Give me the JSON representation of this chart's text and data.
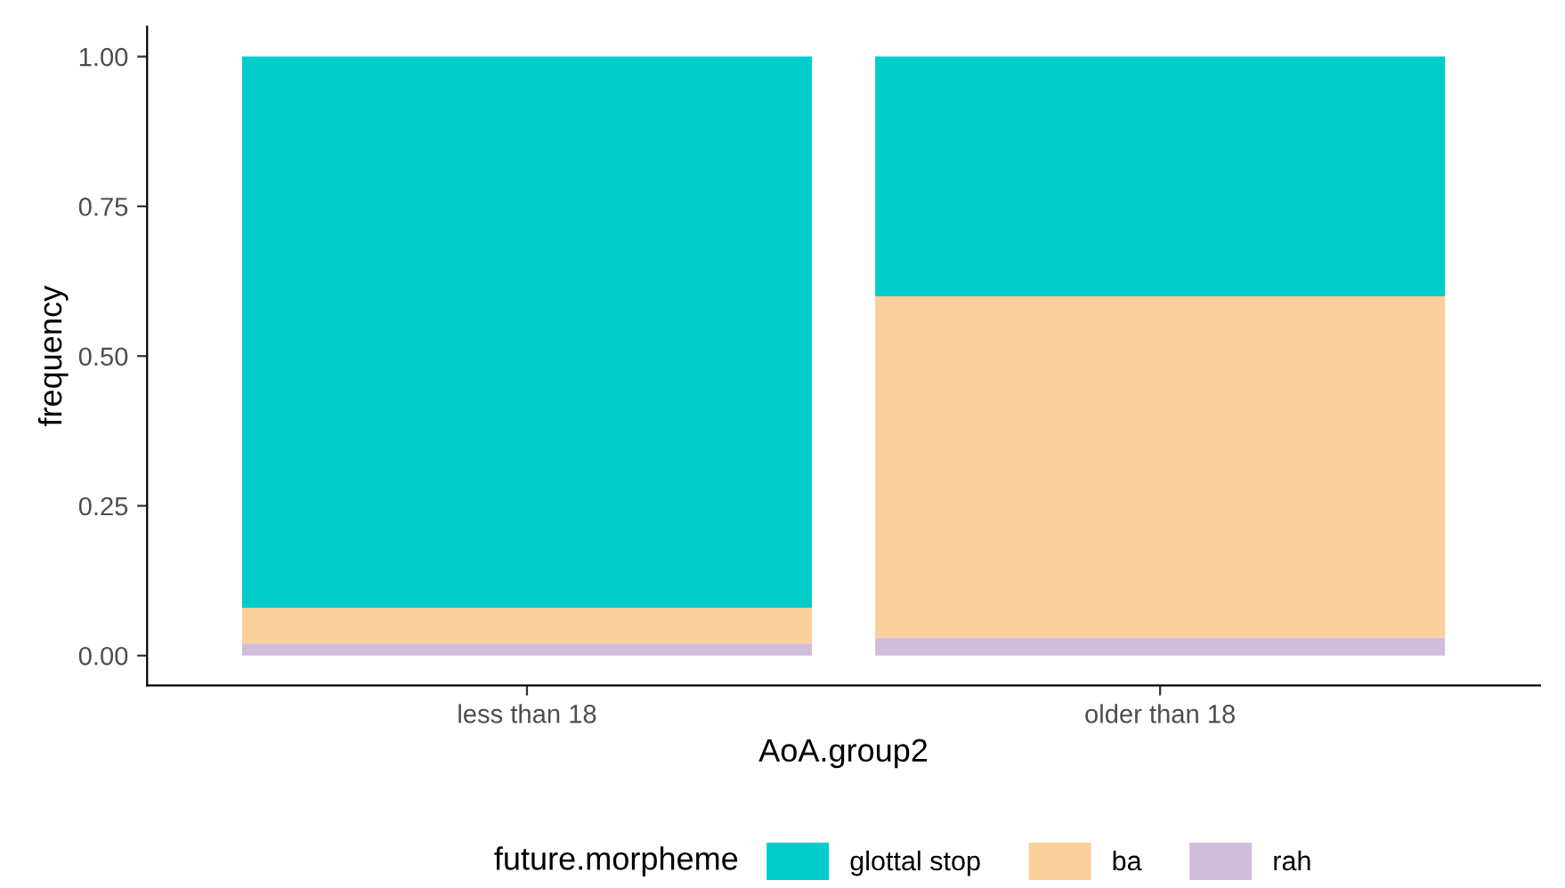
{
  "chart_data": {
    "type": "bar",
    "stacked": true,
    "xlabel": "AoA.group2",
    "ylabel": "frequency",
    "legend_title": "future.morpheme",
    "legend": "bottom",
    "grid": false,
    "categories": [
      "less than 18",
      "older than 18"
    ],
    "ylim": [
      -0.05,
      1.05
    ],
    "yticks": [
      {
        "value": 0,
        "label": "0.00"
      },
      {
        "value": 0.25,
        "label": "0.25"
      },
      {
        "value": 0.5,
        "label": "0.50"
      },
      {
        "value": 0.75,
        "label": "0.75"
      },
      {
        "value": 1,
        "label": "1.00"
      }
    ],
    "series": [
      {
        "name": "rah",
        "color": "#d1bcd9",
        "values": [
          0.02,
          0.03
        ]
      },
      {
        "name": "ba",
        "color": "#fbd09a",
        "values": [
          0.06,
          0.57
        ]
      },
      {
        "name": "glottal stop",
        "color": "#00cccc",
        "values": [
          0.92,
          0.4
        ]
      }
    ]
  }
}
